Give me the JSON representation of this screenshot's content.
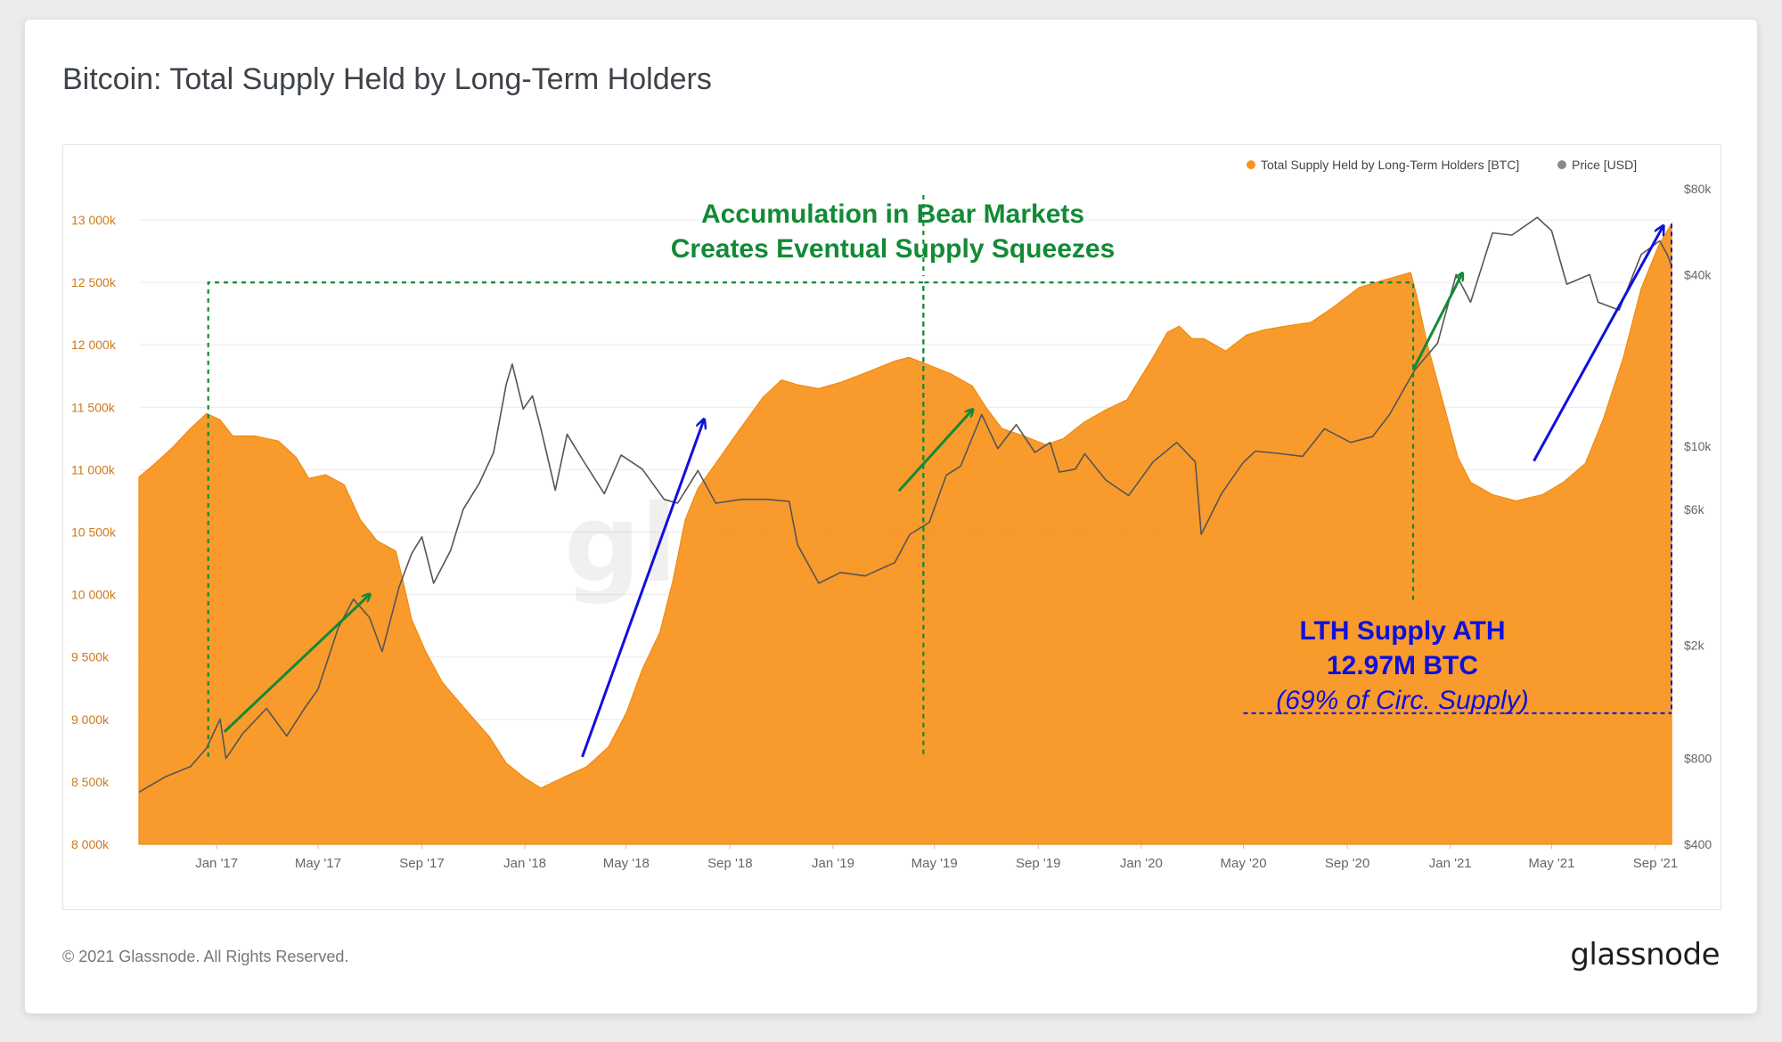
{
  "page": {
    "title": "Bitcoin: Total Supply Held by Long-Term Holders",
    "copyright": "© 2021 Glassnode. All Rights Reserved.",
    "logo": "glassnode"
  },
  "colors": {
    "supply": "#F7931A",
    "price": "#555555",
    "green_annotation": "#138a36",
    "blue_annotation": "#1010dd",
    "axis_left": "#cc7a1b",
    "axis_text": "#666666"
  },
  "chart_data": {
    "type": "area",
    "legend": [
      {
        "name": "Total Supply Held by Long-Term Holders [BTC]",
        "color": "#F7931A"
      },
      {
        "name": "Price [USD]",
        "color": "#888888"
      }
    ],
    "legend_position": "top-right",
    "watermark": "glassnode",
    "x_ticks": [
      "Jan '17",
      "May '17",
      "Sep '17",
      "Jan '18",
      "May '18",
      "Sep '18",
      "Jan '19",
      "May '19",
      "Sep '19",
      "Jan '20",
      "May '20",
      "Sep '20",
      "Jan '21",
      "May '21",
      "Sep '21"
    ],
    "x_tick_dates": [
      "2017-01-01",
      "2017-05-01",
      "2017-09-01",
      "2018-01-01",
      "2018-05-01",
      "2018-09-01",
      "2019-01-01",
      "2019-05-01",
      "2019-09-01",
      "2020-01-01",
      "2020-05-01",
      "2020-09-01",
      "2021-01-01",
      "2021-05-01",
      "2021-09-01"
    ],
    "x_range": [
      "2016-10-01",
      "2021-09-20"
    ],
    "y_left": {
      "range": [
        8000,
        13250
      ],
      "unit": "k BTC",
      "ticks": [
        8000,
        8500,
        9000,
        9500,
        10000,
        10500,
        11000,
        11500,
        12000,
        12500,
        13000
      ],
      "tick_labels": [
        "8 000k",
        "8 500k",
        "9 000k",
        "9 500k",
        "10 000k",
        "10 500k",
        "11 000k",
        "11 500k",
        "12 000k",
        "12 500k",
        "13 000k"
      ]
    },
    "y_right": {
      "scale": "log",
      "range": [
        400,
        80000
      ],
      "ticks": [
        400,
        800,
        2000,
        6000,
        10000,
        40000,
        80000
      ],
      "tick_labels": [
        "$400",
        "$800",
        "$2k",
        "$6k",
        "$10k",
        "$40k",
        "$80k"
      ]
    },
    "series": [
      {
        "name": "Total Supply Held by Long-Term Holders [BTC]",
        "axis": "left",
        "style": "area",
        "color": "#F7931A",
        "points": [
          [
            "2016-10-01",
            10940
          ],
          [
            "2016-10-20",
            11050
          ],
          [
            "2016-11-10",
            11180
          ],
          [
            "2016-12-01",
            11330
          ],
          [
            "2016-12-20",
            11450
          ],
          [
            "2017-01-05",
            11400
          ],
          [
            "2017-01-20",
            11270
          ],
          [
            "2017-02-15",
            11270
          ],
          [
            "2017-03-15",
            11230
          ],
          [
            "2017-04-05",
            11100
          ],
          [
            "2017-04-20",
            10930
          ],
          [
            "2017-05-10",
            10960
          ],
          [
            "2017-06-01",
            10880
          ],
          [
            "2017-06-20",
            10600
          ],
          [
            "2017-07-10",
            10430
          ],
          [
            "2017-08-01",
            10350
          ],
          [
            "2017-08-10",
            10100
          ],
          [
            "2017-08-20",
            9800
          ],
          [
            "2017-09-05",
            9550
          ],
          [
            "2017-09-25",
            9300
          ],
          [
            "2017-10-20",
            9100
          ],
          [
            "2017-11-20",
            8860
          ],
          [
            "2017-12-10",
            8650
          ],
          [
            "2018-01-01",
            8530
          ],
          [
            "2018-01-20",
            8450
          ],
          [
            "2018-02-20",
            8550
          ],
          [
            "2018-03-15",
            8620
          ],
          [
            "2018-04-10",
            8780
          ],
          [
            "2018-05-01",
            9050
          ],
          [
            "2018-05-20",
            9400
          ],
          [
            "2018-06-10",
            9700
          ],
          [
            "2018-06-25",
            10100
          ],
          [
            "2018-07-10",
            10600
          ],
          [
            "2018-07-25",
            10850
          ],
          [
            "2018-08-15",
            11050
          ],
          [
            "2018-09-10",
            11300
          ],
          [
            "2018-10-10",
            11580
          ],
          [
            "2018-11-01",
            11720
          ],
          [
            "2018-11-20",
            11680
          ],
          [
            "2018-12-15",
            11650
          ],
          [
            "2019-01-10",
            11700
          ],
          [
            "2019-02-10",
            11780
          ],
          [
            "2019-03-15",
            11870
          ],
          [
            "2019-04-01",
            11900
          ],
          [
            "2019-04-20",
            11850
          ],
          [
            "2019-05-20",
            11770
          ],
          [
            "2019-06-15",
            11670
          ],
          [
            "2019-07-01",
            11500
          ],
          [
            "2019-07-20",
            11330
          ],
          [
            "2019-08-15",
            11270
          ],
          [
            "2019-09-10",
            11200
          ],
          [
            "2019-10-01",
            11250
          ],
          [
            "2019-10-25",
            11380
          ],
          [
            "2019-11-20",
            11480
          ],
          [
            "2019-12-15",
            11560
          ],
          [
            "2020-01-15",
            11900
          ],
          [
            "2020-02-01",
            12100
          ],
          [
            "2020-02-15",
            12150
          ],
          [
            "2020-03-01",
            12050
          ],
          [
            "2020-03-15",
            12050
          ],
          [
            "2020-04-10",
            11950
          ],
          [
            "2020-05-05",
            12080
          ],
          [
            "2020-05-25",
            12120
          ],
          [
            "2020-06-20",
            12150
          ],
          [
            "2020-07-20",
            12180
          ],
          [
            "2020-08-15",
            12300
          ],
          [
            "2020-09-15",
            12460
          ],
          [
            "2020-10-15",
            12520
          ],
          [
            "2020-11-05",
            12560
          ],
          [
            "2020-11-15",
            12580
          ],
          [
            "2020-11-22",
            12400
          ],
          [
            "2020-12-05",
            12000
          ],
          [
            "2020-12-25",
            11500
          ],
          [
            "2021-01-10",
            11100
          ],
          [
            "2021-01-25",
            10900
          ],
          [
            "2021-02-20",
            10800
          ],
          [
            "2021-03-20",
            10750
          ],
          [
            "2021-04-20",
            10800
          ],
          [
            "2021-05-15",
            10900
          ],
          [
            "2021-06-10",
            11050
          ],
          [
            "2021-07-01",
            11400
          ],
          [
            "2021-07-25",
            11900
          ],
          [
            "2021-08-15",
            12450
          ],
          [
            "2021-09-05",
            12800
          ],
          [
            "2021-09-20",
            12970
          ]
        ]
      },
      {
        "name": "Price [USD]",
        "axis": "right",
        "style": "line",
        "color": "#555555",
        "points": [
          [
            "2016-10-01",
            610
          ],
          [
            "2016-11-01",
            690
          ],
          [
            "2016-12-01",
            750
          ],
          [
            "2016-12-20",
            870
          ],
          [
            "2017-01-05",
            1100
          ],
          [
            "2017-01-12",
            800
          ],
          [
            "2017-02-01",
            980
          ],
          [
            "2017-03-01",
            1200
          ],
          [
            "2017-03-25",
            960
          ],
          [
            "2017-04-15",
            1200
          ],
          [
            "2017-05-01",
            1400
          ],
          [
            "2017-05-25",
            2300
          ],
          [
            "2017-06-12",
            2900
          ],
          [
            "2017-07-01",
            2500
          ],
          [
            "2017-07-16",
            1900
          ],
          [
            "2017-08-05",
            3200
          ],
          [
            "2017-08-20",
            4200
          ],
          [
            "2017-09-01",
            4800
          ],
          [
            "2017-09-15",
            3300
          ],
          [
            "2017-10-05",
            4300
          ],
          [
            "2017-10-20",
            6000
          ],
          [
            "2017-11-08",
            7400
          ],
          [
            "2017-11-25",
            9500
          ],
          [
            "2017-12-10",
            16500
          ],
          [
            "2017-12-17",
            19400
          ],
          [
            "2017-12-30",
            13500
          ],
          [
            "2018-01-10",
            15000
          ],
          [
            "2018-01-20",
            11500
          ],
          [
            "2018-02-06",
            7000
          ],
          [
            "2018-02-20",
            11000
          ],
          [
            "2018-03-10",
            9000
          ],
          [
            "2018-04-05",
            6800
          ],
          [
            "2018-04-25",
            9300
          ],
          [
            "2018-05-20",
            8300
          ],
          [
            "2018-06-15",
            6500
          ],
          [
            "2018-07-01",
            6300
          ],
          [
            "2018-07-25",
            8200
          ],
          [
            "2018-08-15",
            6300
          ],
          [
            "2018-09-15",
            6500
          ],
          [
            "2018-10-15",
            6500
          ],
          [
            "2018-11-10",
            6400
          ],
          [
            "2018-11-20",
            4500
          ],
          [
            "2018-12-15",
            3300
          ],
          [
            "2019-01-10",
            3600
          ],
          [
            "2019-02-08",
            3500
          ],
          [
            "2019-03-15",
            3900
          ],
          [
            "2019-04-02",
            4900
          ],
          [
            "2019-04-25",
            5400
          ],
          [
            "2019-05-15",
            7900
          ],
          [
            "2019-06-01",
            8500
          ],
          [
            "2019-06-26",
            12900
          ],
          [
            "2019-07-15",
            9800
          ],
          [
            "2019-08-06",
            11900
          ],
          [
            "2019-08-28",
            9500
          ],
          [
            "2019-09-15",
            10300
          ],
          [
            "2019-09-26",
            8100
          ],
          [
            "2019-10-15",
            8300
          ],
          [
            "2019-10-26",
            9400
          ],
          [
            "2019-11-20",
            7600
          ],
          [
            "2019-12-17",
            6700
          ],
          [
            "2020-01-15",
            8800
          ],
          [
            "2020-02-12",
            10300
          ],
          [
            "2020-03-05",
            8800
          ],
          [
            "2020-03-12",
            4900
          ],
          [
            "2020-04-05",
            6800
          ],
          [
            "2020-04-30",
            8700
          ],
          [
            "2020-05-15",
            9600
          ],
          [
            "2020-06-15",
            9400
          ],
          [
            "2020-07-10",
            9200
          ],
          [
            "2020-08-05",
            11500
          ],
          [
            "2020-09-05",
            10300
          ],
          [
            "2020-10-01",
            10800
          ],
          [
            "2020-10-21",
            12900
          ],
          [
            "2020-11-20",
            18500
          ],
          [
            "2020-12-17",
            23000
          ],
          [
            "2021-01-08",
            40000
          ],
          [
            "2021-01-25",
            32000
          ],
          [
            "2021-02-20",
            56000
          ],
          [
            "2021-03-15",
            55000
          ],
          [
            "2021-04-14",
            63500
          ],
          [
            "2021-05-01",
            57000
          ],
          [
            "2021-05-19",
            37000
          ],
          [
            "2021-06-15",
            40000
          ],
          [
            "2021-06-25",
            32000
          ],
          [
            "2021-07-20",
            30000
          ],
          [
            "2021-08-15",
            47000
          ],
          [
            "2021-09-06",
            52500
          ],
          [
            "2021-09-15",
            47000
          ],
          [
            "2021-09-20",
            43000
          ]
        ]
      }
    ],
    "annotations": {
      "green_text_line1": "Accumulation in Bear Markets",
      "green_text_line2": "Creates Eventual Supply Squeezes",
      "green_box_1": {
        "x_start": "2016-12-22",
        "x_end": "2019-04-18",
        "y_top": 12500,
        "y_bottom": 8700
      },
      "green_box_2": {
        "x_start": "2019-04-18",
        "x_end": "2020-11-18",
        "y_top": 12500,
        "y_bottom": 9940
      },
      "green_vline": {
        "x": "2019-04-18",
        "y_top": 12550
      },
      "green_arrows": [
        {
          "from": [
            "2017-01-10",
            8900
          ],
          "to": [
            "2017-07-01",
            10000
          ]
        },
        {
          "from": [
            "2019-03-20",
            10830
          ],
          "to": [
            "2019-06-15",
            11480
          ]
        },
        {
          "from": [
            "2020-11-18",
            11800
          ],
          "to": [
            "2021-01-15",
            12570
          ]
        }
      ],
      "blue_arrows": [
        {
          "from": [
            "2018-03-10",
            8700
          ],
          "to": [
            "2018-08-01",
            11400
          ]
        },
        {
          "from": [
            "2021-04-10",
            11070
          ],
          "to": [
            "2021-09-10",
            12950
          ]
        }
      ],
      "blue_text_line1": "LTH Supply ATH",
      "blue_text_line2": "12.97M BTC",
      "blue_text_line3": "(69% of Circ. Supply)",
      "blue_hline": {
        "y": 9050,
        "x_start": "2020-05-01",
        "x_end": "2021-09-20"
      },
      "blue_vline": {
        "x": "2021-09-20",
        "y_from": 12970,
        "y_to": 9050
      }
    }
  }
}
